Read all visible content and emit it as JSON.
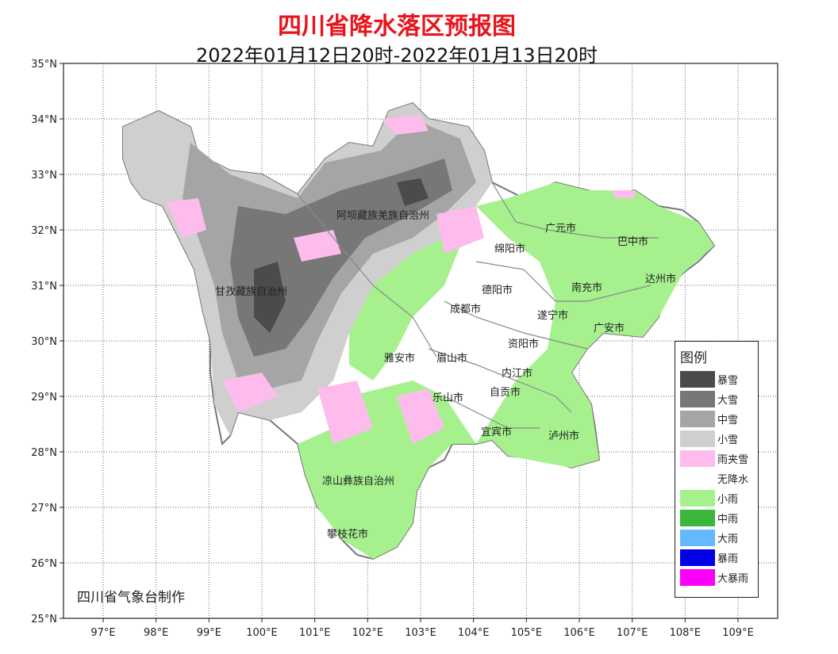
{
  "title": "四川省降水落区预报图",
  "subtitle": "2022年01月12日20时-2022年01月13日20时",
  "credit": "四川省气象台制作",
  "axes": {
    "lon_ticks": [
      "97°E",
      "98°E",
      "99°E",
      "100°E",
      "101°E",
      "102°E",
      "103°E",
      "104°E",
      "105°E",
      "106°E",
      "107°E",
      "108°E",
      "109°E"
    ],
    "lat_ticks": [
      "35°N",
      "34°N",
      "33°N",
      "32°N",
      "31°N",
      "30°N",
      "29°N",
      "28°N",
      "27°N",
      "26°N",
      "25°N"
    ]
  },
  "cities": [
    "阿坝藏族羌族自治州",
    "甘孜藏族自治州",
    "广元市",
    "巴中市",
    "绵阳市",
    "德阳市",
    "南充市",
    "达州市",
    "成都市",
    "遂宁市",
    "广安市",
    "资阳市",
    "雅安市",
    "眉山市",
    "内江市",
    "乐山市",
    "自贡市",
    "宜宾市",
    "泸州市",
    "凉山彝族自治州",
    "攀枝花市"
  ],
  "legend": {
    "title": "图例",
    "items": [
      {
        "label": "暴雪",
        "color": "#4b4b4b"
      },
      {
        "label": "大雪",
        "color": "#777777"
      },
      {
        "label": "中雪",
        "color": "#a5a5a5"
      },
      {
        "label": "小雪",
        "color": "#cfcfcf"
      },
      {
        "label": "雨夹雪",
        "color": "#fdbcec"
      },
      {
        "label": "无降水",
        "color": "#ffffff"
      },
      {
        "label": "小雨",
        "color": "#a6f18e"
      },
      {
        "label": "中雨",
        "color": "#3bb83b"
      },
      {
        "label": "大雨",
        "color": "#64b8ff"
      },
      {
        "label": "暴雨",
        "color": "#0000e6"
      },
      {
        "label": "大暴雨",
        "color": "#fa00fa"
      }
    ]
  }
}
